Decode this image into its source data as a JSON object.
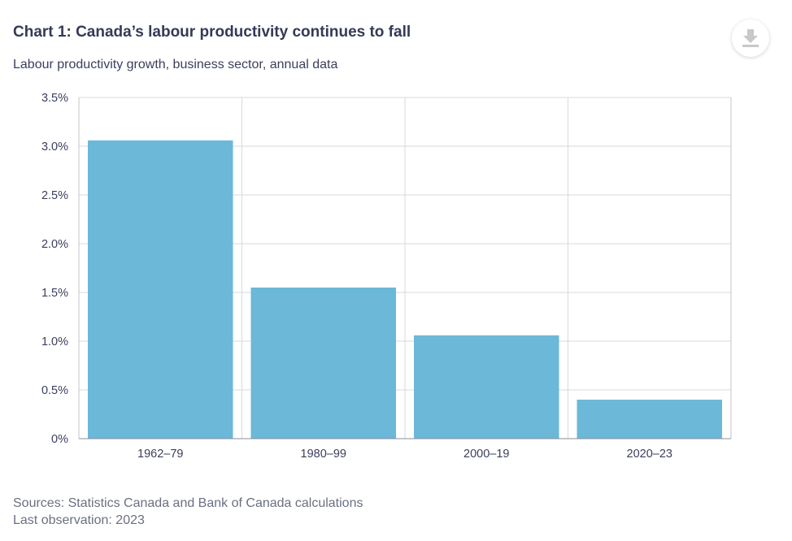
{
  "title": "Chart 1: Canada’s labour productivity continues to fall",
  "subtitle": "Labour productivity growth, business sector, annual data",
  "download_icon": "download-icon",
  "chart_data": {
    "type": "bar",
    "categories": [
      "1962–79",
      "1980–99",
      "2000–19",
      "2020–23"
    ],
    "values": [
      3.06,
      1.55,
      1.06,
      0.4
    ],
    "ylim": [
      0,
      3.5
    ],
    "yticks": [
      0,
      0.5,
      1.0,
      1.5,
      2.0,
      2.5,
      3.0,
      3.5
    ],
    "ytick_labels": [
      "0%",
      "0.5%",
      "1.0%",
      "1.5%",
      "2.0%",
      "2.5%",
      "3.0%",
      "3.5%"
    ],
    "xlabel": "",
    "ylabel": "",
    "bar_color": "#6bb8d9",
    "grid": true
  },
  "sources": "Sources: Statistics Canada and Bank of Canada calculations",
  "last_observation": "Last observation: 2023"
}
